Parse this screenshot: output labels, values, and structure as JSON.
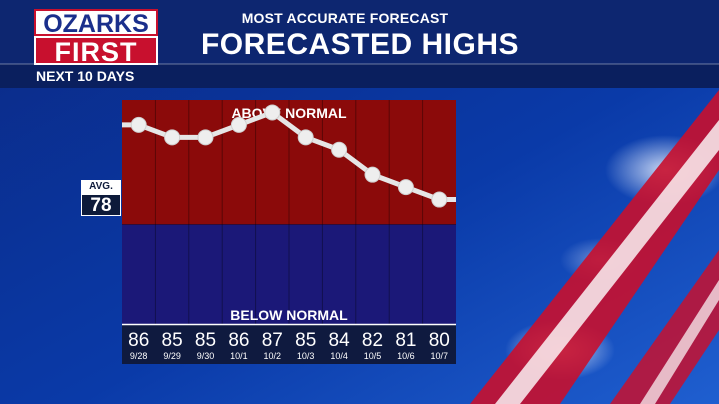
{
  "brand": {
    "line1": "OZARKS",
    "line2": "FIRST"
  },
  "header": {
    "tagline": "MOST ACCURATE FORECAST",
    "title": "FORECASTED HIGHS"
  },
  "subtitle": "NEXT 10 DAYS",
  "avg": {
    "label": "AVG.",
    "value": "78"
  },
  "colors": {
    "above": "#8b0a0a",
    "below": "#1b1878",
    "line": "#e6e6e6",
    "accent": "#c8102e"
  },
  "chart_data": {
    "type": "line",
    "title": "FORECASTED HIGHS",
    "categories": [
      "9/28",
      "9/29",
      "9/30",
      "10/1",
      "10/2",
      "10/3",
      "10/4",
      "10/5",
      "10/6",
      "10/7"
    ],
    "values": [
      86,
      85,
      85,
      86,
      87,
      85,
      84,
      82,
      81,
      80
    ],
    "normal": 78,
    "ylim": [
      70,
      88
    ],
    "regions": {
      "above_label": "ABOVE NORMAL",
      "below_label": "BELOW NORMAL"
    },
    "grid": true
  }
}
